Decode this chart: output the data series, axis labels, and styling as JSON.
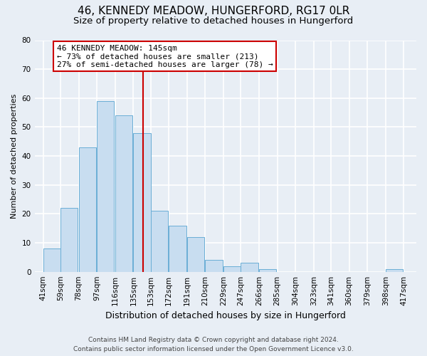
{
  "title": "46, KENNEDY MEADOW, HUNGERFORD, RG17 0LR",
  "subtitle": "Size of property relative to detached houses in Hungerford",
  "xlabel": "Distribution of detached houses by size in Hungerford",
  "ylabel": "Number of detached properties",
  "bar_left_edges": [
    41,
    59,
    78,
    97,
    116,
    135,
    153,
    172,
    191,
    210,
    229,
    247,
    266,
    285,
    304,
    323,
    341,
    360,
    379,
    398
  ],
  "bar_heights": [
    8,
    22,
    43,
    59,
    54,
    48,
    21,
    16,
    12,
    4,
    2,
    3,
    1,
    0,
    0,
    0,
    0,
    0,
    0,
    1
  ],
  "bin_width": 18,
  "bar_color": "#c8ddf0",
  "bar_edge_color": "#6aaed6",
  "vline_x": 145,
  "vline_color": "#cc0000",
  "ylim": [
    0,
    80
  ],
  "yticks": [
    0,
    10,
    20,
    30,
    40,
    50,
    60,
    70,
    80
  ],
  "x_tick_labels": [
    "41sqm",
    "59sqm",
    "78sqm",
    "97sqm",
    "116sqm",
    "135sqm",
    "153sqm",
    "172sqm",
    "191sqm",
    "210sqm",
    "229sqm",
    "247sqm",
    "266sqm",
    "285sqm",
    "304sqm",
    "323sqm",
    "341sqm",
    "360sqm",
    "379sqm",
    "398sqm",
    "417sqm"
  ],
  "x_tick_positions": [
    41,
    59,
    78,
    97,
    116,
    135,
    153,
    172,
    191,
    210,
    229,
    247,
    266,
    285,
    304,
    323,
    341,
    360,
    379,
    398,
    417
  ],
  "annotation_title": "46 KENNEDY MEADOW: 145sqm",
  "annotation_line1": "← 73% of detached houses are smaller (213)",
  "annotation_line2": "27% of semi-detached houses are larger (78) →",
  "annotation_box_color": "#ffffff",
  "annotation_box_edge_color": "#cc0000",
  "footnote1": "Contains HM Land Registry data © Crown copyright and database right 2024.",
  "footnote2": "Contains public sector information licensed under the Open Government Licence v3.0.",
  "background_color": "#e8eef5",
  "plot_bg_color": "#e8eef5",
  "grid_color": "#ffffff",
  "title_fontsize": 11,
  "subtitle_fontsize": 9.5,
  "xlabel_fontsize": 9,
  "ylabel_fontsize": 8,
  "tick_fontsize": 7.5,
  "annotation_fontsize": 8,
  "footnote_fontsize": 6.5,
  "xlim_left": 32,
  "xlim_right": 430
}
